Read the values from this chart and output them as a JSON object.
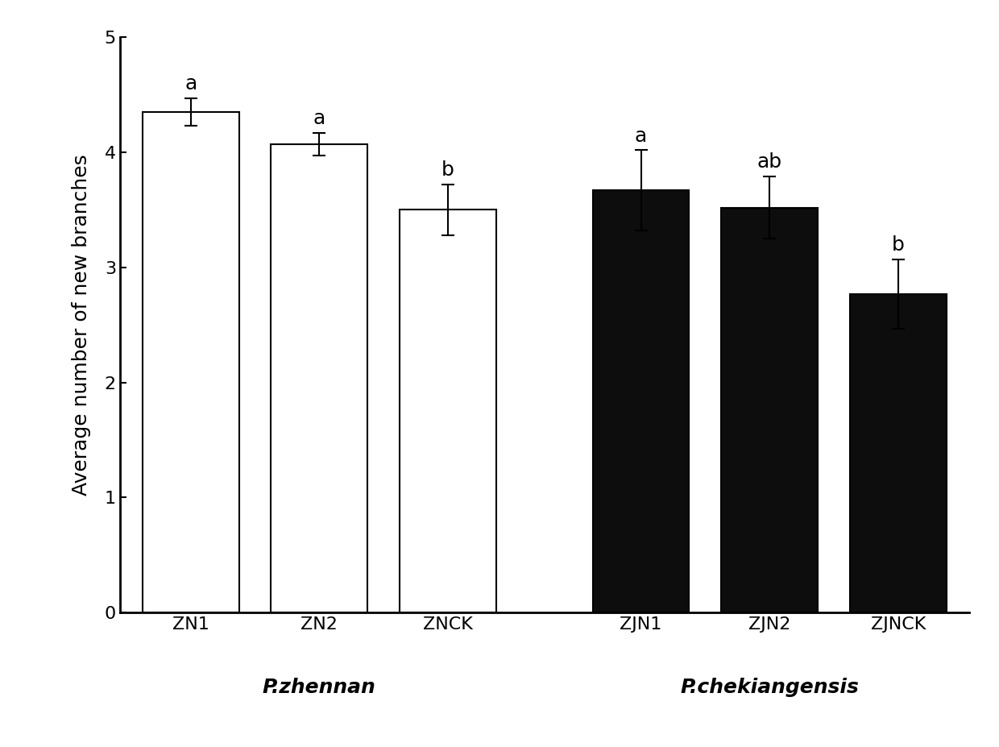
{
  "categories": [
    "ZN1",
    "ZN2",
    "ZNCK",
    "ZJN1",
    "ZJN2",
    "ZJNCK"
  ],
  "values": [
    4.35,
    4.07,
    3.5,
    3.67,
    3.52,
    2.77
  ],
  "errors": [
    0.12,
    0.1,
    0.22,
    0.35,
    0.27,
    0.3
  ],
  "bar_colors": [
    "#ffffff",
    "#ffffff",
    "#ffffff",
    "#0d0d0d",
    "#0d0d0d",
    "#0d0d0d"
  ],
  "bar_edgecolors": [
    "#000000",
    "#000000",
    "#000000",
    "#000000",
    "#000000",
    "#000000"
  ],
  "significance_labels": [
    "a",
    "a",
    "b",
    "a",
    "ab",
    "b"
  ],
  "ylabel": "Average number of new branches",
  "ylim": [
    0,
    5
  ],
  "yticks": [
    0,
    1,
    2,
    3,
    4,
    5
  ],
  "group_labels": [
    "P.zhennan",
    "P.chekiangensis"
  ],
  "background_color": "#ffffff",
  "bar_width": 0.75,
  "x_positions": [
    0,
    1,
    2,
    3.5,
    4.5,
    5.5
  ],
  "group_centers": [
    1.0,
    4.5
  ],
  "xlim": [
    -0.55,
    6.05
  ],
  "sig_fontsize": 18,
  "tick_fontsize": 16,
  "ylabel_fontsize": 18,
  "group_label_fontsize": 18
}
